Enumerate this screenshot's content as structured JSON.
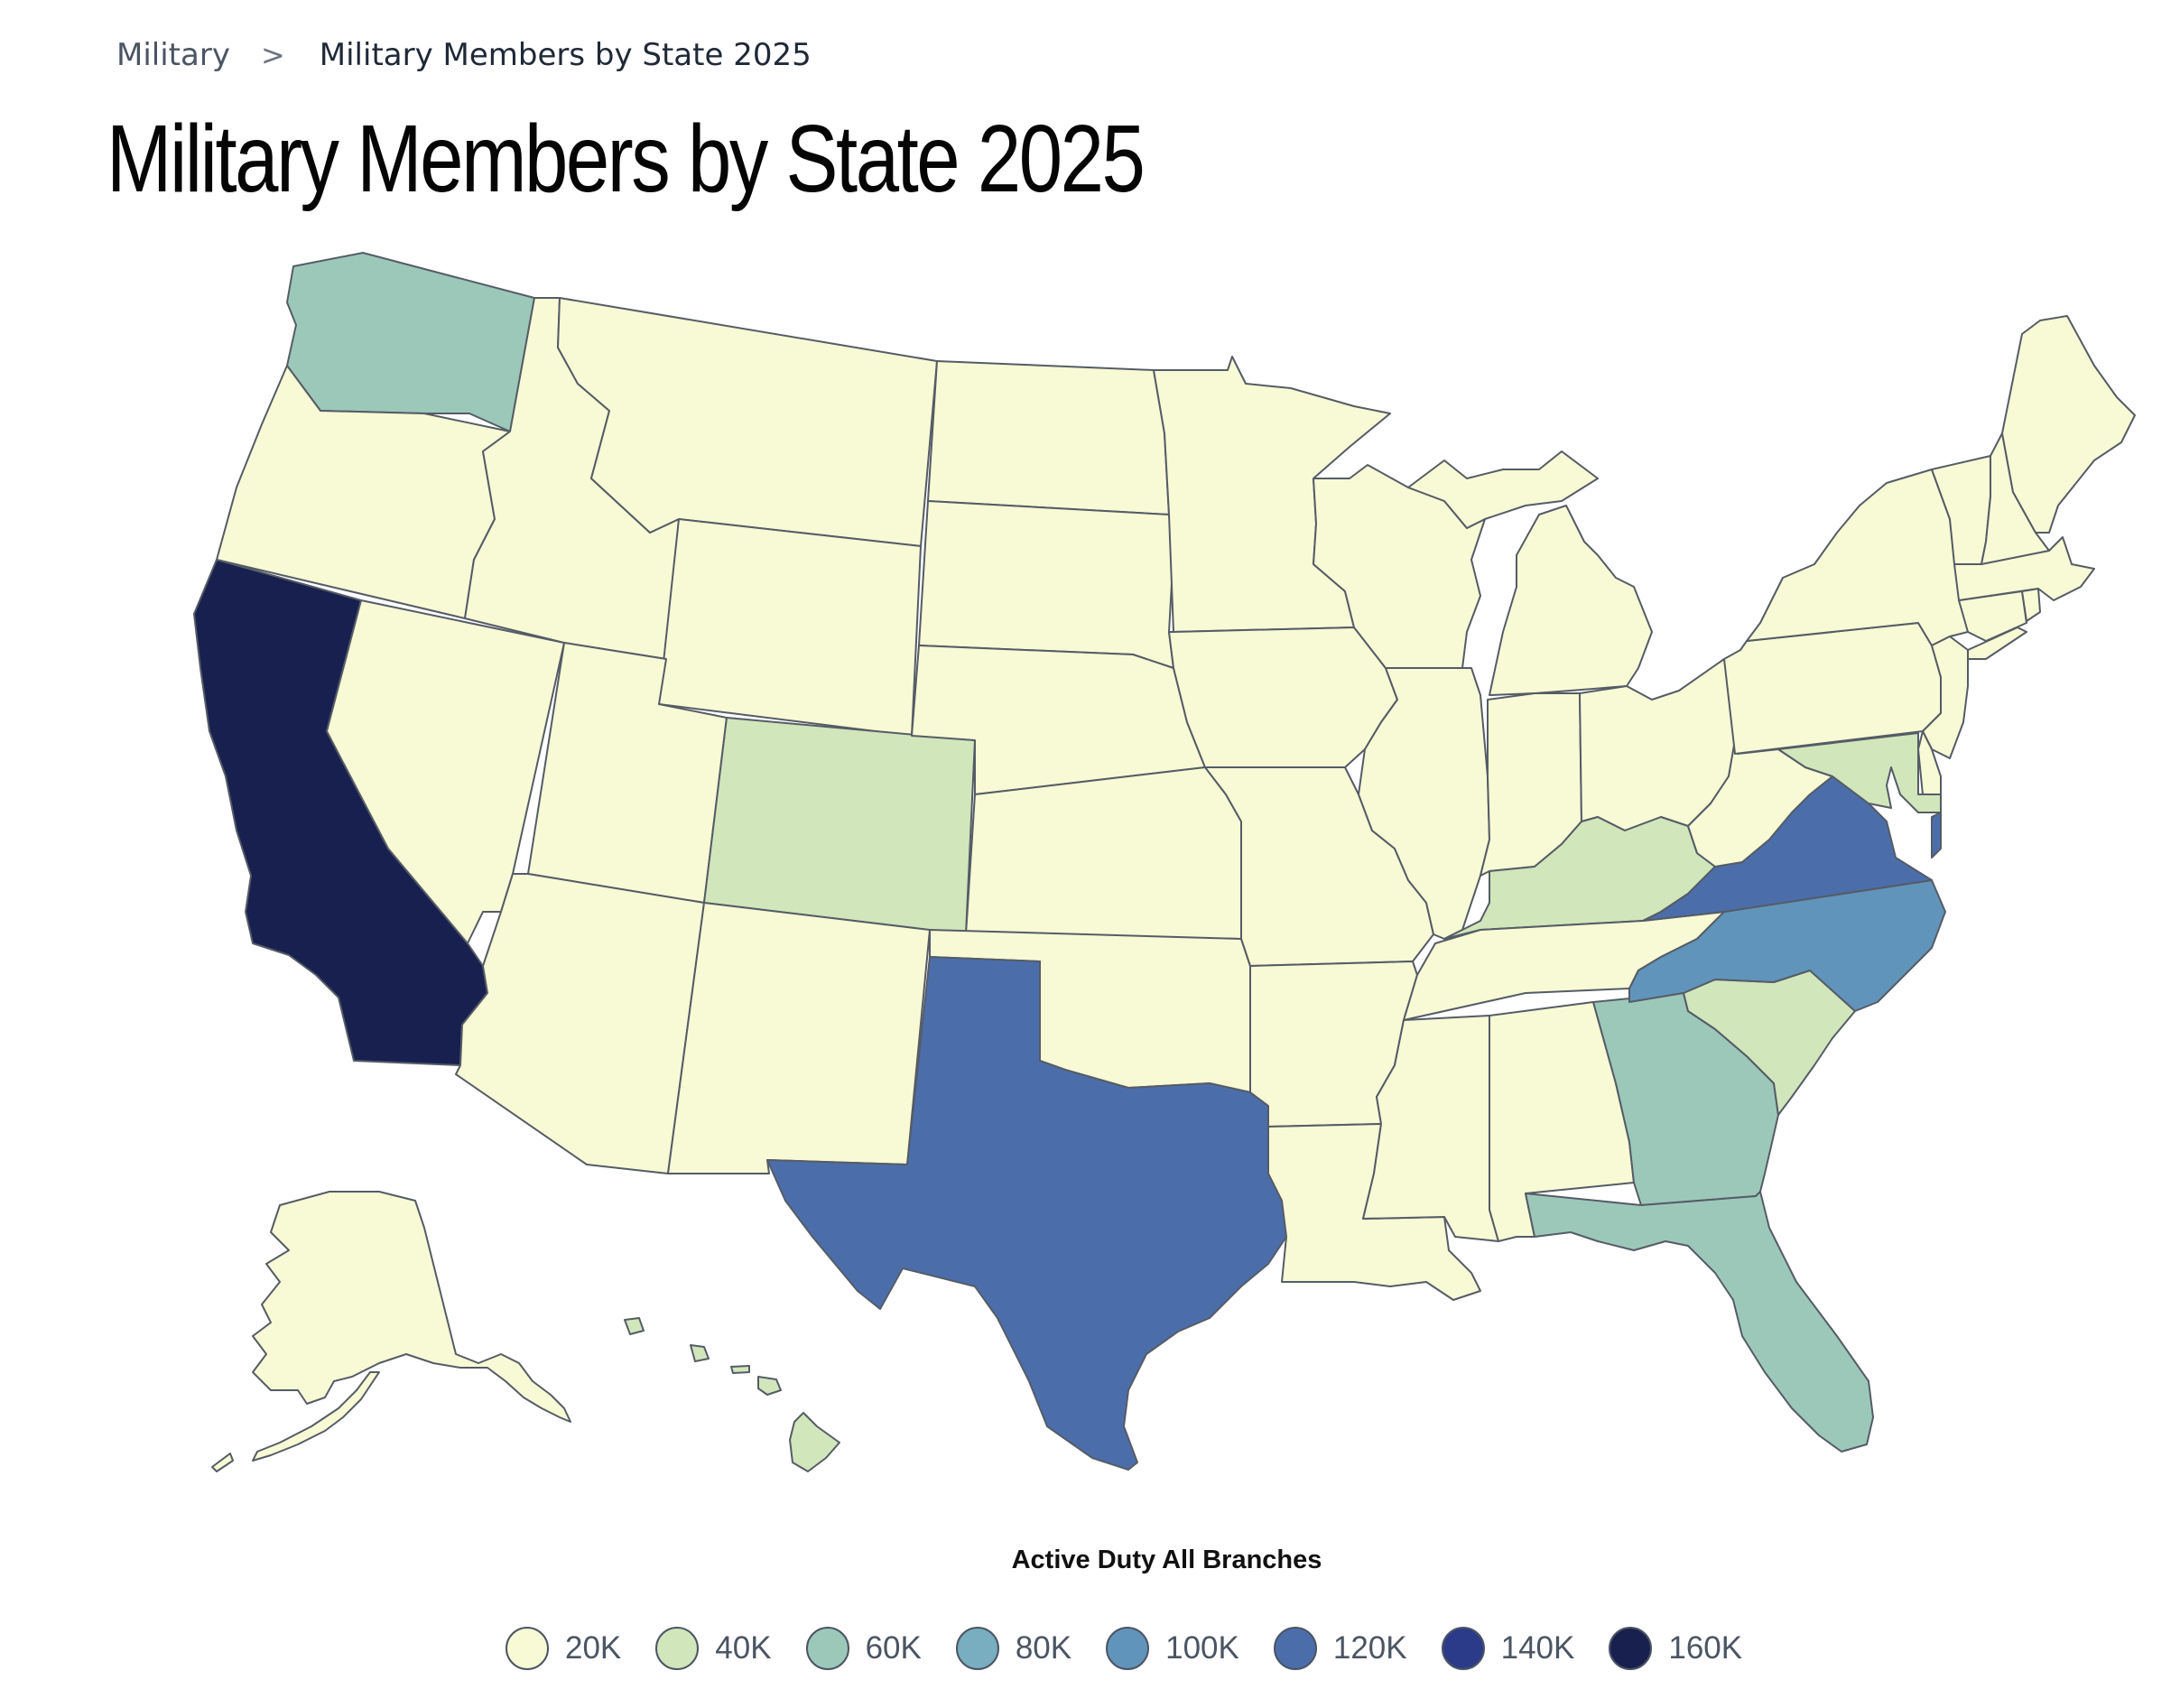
{
  "breadcrumb": {
    "parent": "Military",
    "separator": ">",
    "current": "Military Members by State 2025"
  },
  "page_title": "Military Members by State 2025",
  "map": {
    "legend_title": "Active Duty All Branches",
    "legend": [
      {
        "label": "20K",
        "color": "#f8fad5"
      },
      {
        "label": "40K",
        "color": "#d1e6bb"
      },
      {
        "label": "60K",
        "color": "#9cc8b9"
      },
      {
        "label": "80K",
        "color": "#78aebf"
      },
      {
        "label": "100K",
        "color": "#6194bb"
      },
      {
        "label": "120K",
        "color": "#4b6eab"
      },
      {
        "label": "140K",
        "color": "#2c3a8a"
      },
      {
        "label": "160K",
        "color": "#18204f"
      }
    ],
    "states": [
      {
        "code": "WA",
        "level": "60K"
      },
      {
        "code": "OR",
        "level": "20K"
      },
      {
        "code": "CA",
        "level": "160K"
      },
      {
        "code": "NV",
        "level": "20K"
      },
      {
        "code": "ID",
        "level": "20K"
      },
      {
        "code": "MT",
        "level": "20K"
      },
      {
        "code": "WY",
        "level": "20K"
      },
      {
        "code": "UT",
        "level": "20K"
      },
      {
        "code": "AZ",
        "level": "20K"
      },
      {
        "code": "CO",
        "level": "40K"
      },
      {
        "code": "NM",
        "level": "20K"
      },
      {
        "code": "ND",
        "level": "20K"
      },
      {
        "code": "SD",
        "level": "20K"
      },
      {
        "code": "NE",
        "level": "20K"
      },
      {
        "code": "KS",
        "level": "20K"
      },
      {
        "code": "OK",
        "level": "20K"
      },
      {
        "code": "TX",
        "level": "120K"
      },
      {
        "code": "MN",
        "level": "20K"
      },
      {
        "code": "IA",
        "level": "20K"
      },
      {
        "code": "MO",
        "level": "20K"
      },
      {
        "code": "AR",
        "level": "20K"
      },
      {
        "code": "LA",
        "level": "20K"
      },
      {
        "code": "WI",
        "level": "20K"
      },
      {
        "code": "IL",
        "level": "20K"
      },
      {
        "code": "MI",
        "level": "20K"
      },
      {
        "code": "IN",
        "level": "20K"
      },
      {
        "code": "OH",
        "level": "20K"
      },
      {
        "code": "KY",
        "level": "40K"
      },
      {
        "code": "TN",
        "level": "20K"
      },
      {
        "code": "MS",
        "level": "20K"
      },
      {
        "code": "AL",
        "level": "20K"
      },
      {
        "code": "GA",
        "level": "60K"
      },
      {
        "code": "FL",
        "level": "60K"
      },
      {
        "code": "SC",
        "level": "40K"
      },
      {
        "code": "NC",
        "level": "100K"
      },
      {
        "code": "VA",
        "level": "120K"
      },
      {
        "code": "WV",
        "level": "20K"
      },
      {
        "code": "PA",
        "level": "20K"
      },
      {
        "code": "NY",
        "level": "20K"
      },
      {
        "code": "NJ",
        "level": "20K"
      },
      {
        "code": "MD",
        "level": "40K"
      },
      {
        "code": "DE",
        "level": "20K"
      },
      {
        "code": "CT",
        "level": "20K"
      },
      {
        "code": "RI",
        "level": "20K"
      },
      {
        "code": "MA",
        "level": "20K"
      },
      {
        "code": "VT",
        "level": "20K"
      },
      {
        "code": "NH",
        "level": "20K"
      },
      {
        "code": "ME",
        "level": "20K"
      },
      {
        "code": "AK",
        "level": "20K"
      },
      {
        "code": "HI",
        "level": "40K"
      }
    ]
  }
}
